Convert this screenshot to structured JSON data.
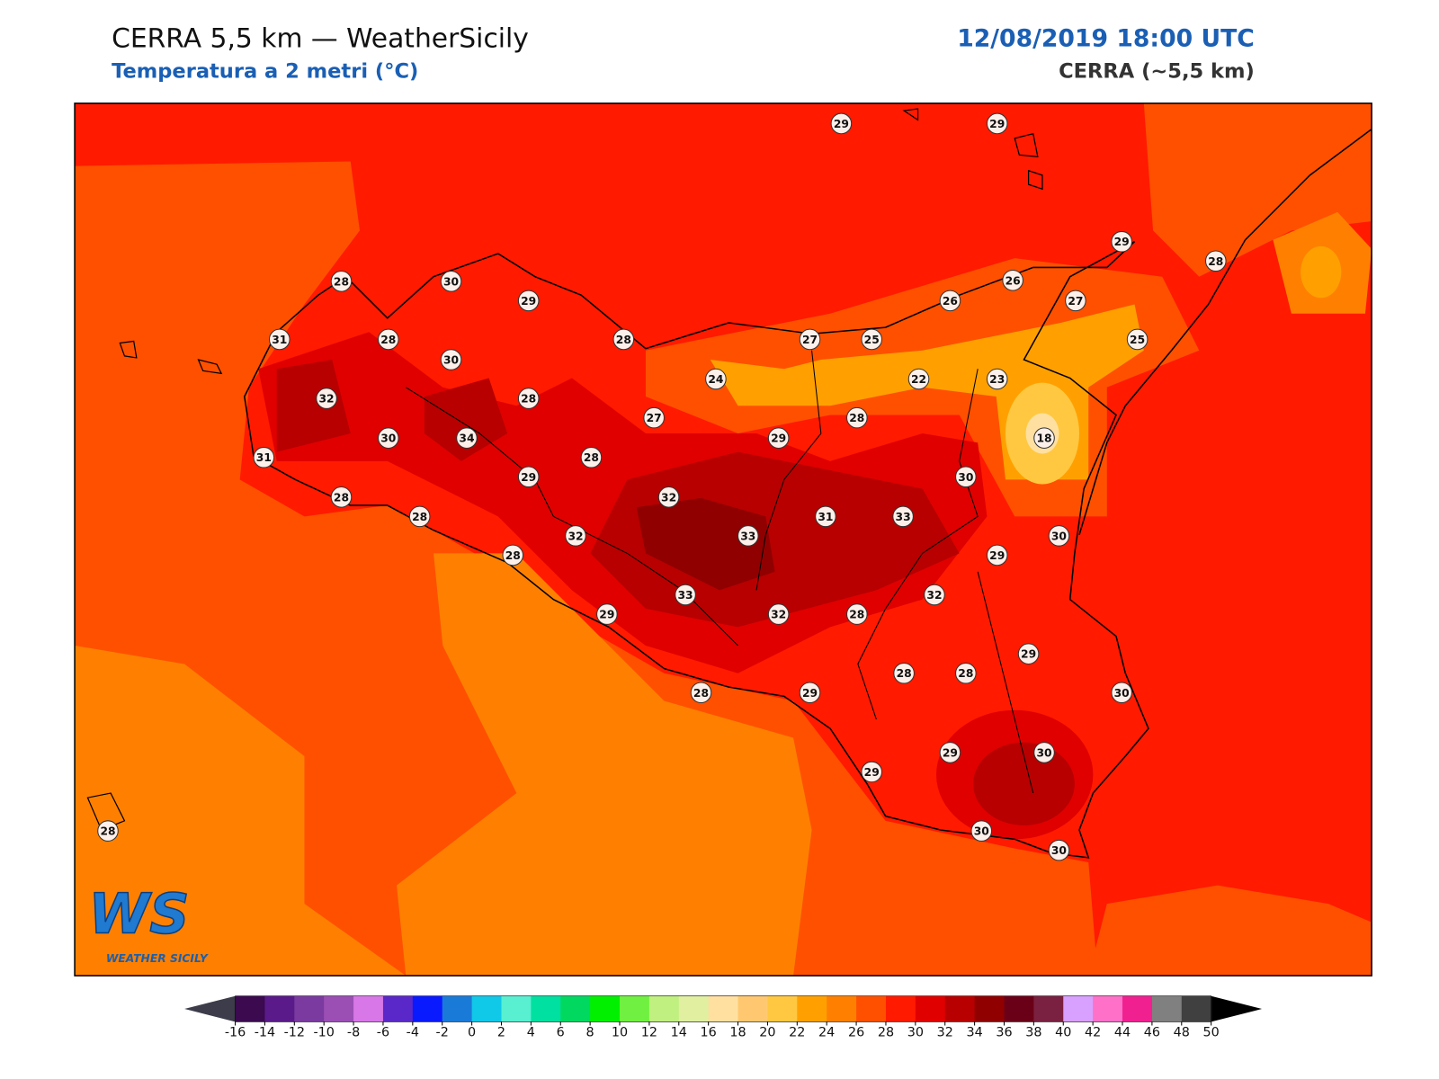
{
  "header": {
    "title": "CERRA 5,5 km — WeatherSicily",
    "subtitle": "Temperatura a 2 metri (°C)",
    "date": "12/08/2019 18:00 UTC",
    "model": "CERRA (~5,5 km)"
  },
  "logo": {
    "mark": "WS",
    "caption": "WEATHER SICILY"
  },
  "map": {
    "stations": [
      28,
      30,
      29,
      28,
      31,
      28,
      30,
      32,
      28,
      27,
      24,
      30,
      34,
      31,
      29,
      28,
      28,
      28,
      32,
      32,
      33,
      31,
      33,
      28,
      33,
      29,
      32,
      28,
      32,
      28,
      29,
      28,
      28,
      29,
      30,
      29,
      29,
      30,
      30,
      30,
      28,
      29,
      29,
      29,
      28,
      26,
      26,
      27,
      27,
      25,
      25,
      22,
      23,
      29,
      28,
      18,
      30,
      30,
      29
    ]
  },
  "colorbar": {
    "ticks": [
      -16,
      -14,
      -12,
      -10,
      -8,
      -6,
      -4,
      -2,
      0,
      2,
      4,
      6,
      8,
      10,
      12,
      14,
      16,
      18,
      20,
      22,
      24,
      26,
      28,
      30,
      32,
      34,
      36,
      38,
      40,
      42,
      44,
      46,
      48,
      50
    ],
    "colors": [
      "#3b0a4f",
      "#5a1a8a",
      "#7a3aa0",
      "#9b4fb5",
      "#d877e8",
      "#5a28c8",
      "#0a1aff",
      "#1a7ad8",
      "#10c8e8",
      "#58f0d0",
      "#00e0a0",
      "#00d860",
      "#00f000",
      "#70f040",
      "#c0f080",
      "#e0f0a0",
      "#ffe0a0",
      "#ffc870",
      "#ffc840",
      "#ffa000",
      "#ff8000",
      "#ff5000",
      "#ff1a00",
      "#e00000",
      "#b80000",
      "#900000",
      "#6a0018",
      "#7a2040",
      "#d8a0ff",
      "#ff70c8",
      "#f02090",
      "#808080",
      "#404040"
    ],
    "under_color": "#3c3c4a",
    "over_color": "#000000"
  }
}
